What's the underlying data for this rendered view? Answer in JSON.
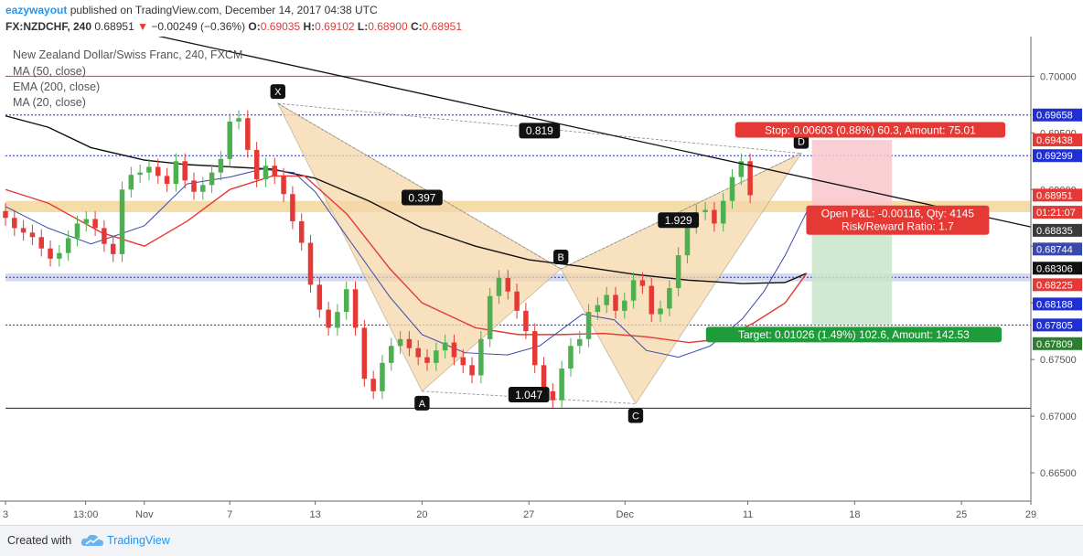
{
  "header": {
    "author": "eazywayout",
    "published_text": "published on TradingView.com, December 14, 2017 04:38 UTC",
    "symbol": "FX:NZDCHF, 240",
    "last": "0.68951",
    "arrow": "▼",
    "change": "−0.00249 (−0.36%)",
    "ohlc": [
      {
        "k": "O:",
        "v": "0.69035"
      },
      {
        "k": "H:",
        "v": "0.69102"
      },
      {
        "k": "L:",
        "v": "0.68900"
      },
      {
        "k": "C:",
        "v": "0.68951"
      }
    ]
  },
  "legend": [
    "New Zealand Dollar/Swiss Franc, 240, FXCM",
    "MA (50, close)",
    "EMA (200, close)",
    "MA (20, close)"
  ],
  "footer": {
    "created_with": "Created with",
    "brand": "TradingView"
  },
  "colors": {
    "up": "#4caf50",
    "down": "#e53935",
    "ma50": "#3949ab",
    "ema200": "#e53935",
    "ma20": "#111111",
    "pattern_fill": "#f5d7a9",
    "hline_blue": "#1f2fd1",
    "hline_red": "#e53935",
    "zone": "#f1cf86",
    "stop_fill": "#f9c7cb",
    "target_fill": "#c8e6c9"
  },
  "chart_data": {
    "type": "candlestick",
    "ylim": [
      0.6625,
      0.7035
    ],
    "xlim": [
      1,
      97
    ],
    "y_ticks": [
      "0.70000",
      "0.69500",
      "0.69000",
      "0.68500",
      "0.68000",
      "0.67500",
      "0.67000",
      "0.66500"
    ],
    "x_ticks": [
      {
        "label": "3",
        "x": 1
      },
      {
        "label": "13:00",
        "x": 8.5
      },
      {
        "label": "Nov",
        "x": 14
      },
      {
        "label": "7",
        "x": 22
      },
      {
        "label": "13",
        "x": 30
      },
      {
        "label": "20",
        "x": 40
      },
      {
        "label": "27",
        "x": 50
      },
      {
        "label": "Dec",
        "x": 59
      },
      {
        "label": "11",
        "x": 70.5
      },
      {
        "label": "18",
        "x": 80.5
      },
      {
        "label": "25",
        "x": 90.5
      },
      {
        "label": "29",
        "x": 97
      }
    ],
    "candles_close": [
      0.6875,
      0.6866,
      0.6862,
      0.6858,
      0.6848,
      0.6839,
      0.6844,
      0.6857,
      0.687,
      0.6874,
      0.6866,
      0.6852,
      0.6843,
      0.69,
      0.6913,
      0.6915,
      0.692,
      0.6912,
      0.6905,
      0.6925,
      0.6908,
      0.6898,
      0.6904,
      0.6915,
      0.6927,
      0.696,
      0.6963,
      0.6935,
      0.6909,
      0.6921,
      0.6912,
      0.6896,
      0.6872,
      0.6853,
      0.6816,
      0.6794,
      0.6778,
      0.6792,
      0.6812,
      0.6778,
      0.6733,
      0.6722,
      0.6747,
      0.6762,
      0.6768,
      0.676,
      0.6752,
      0.6747,
      0.6758,
      0.6765,
      0.6752,
      0.6745,
      0.6736,
      0.6768,
      0.6806,
      0.6822,
      0.681,
      0.6793,
      0.6775,
      0.6745,
      0.6722,
      0.6714,
      0.6742,
      0.6762,
      0.6768,
      0.6792,
      0.6798,
      0.6807,
      0.6793,
      0.6802,
      0.682,
      0.6815,
      0.679,
      0.6795,
      0.6813,
      0.6842,
      0.6868,
      0.688,
      0.6882,
      0.687,
      0.689,
      0.6911,
      0.6925,
      0.6895
    ],
    "candles_x_start": 1,
    "candles_x_step": 0.84,
    "ma20": [
      [
        1,
        0.6885
      ],
      [
        5,
        0.6866
      ],
      [
        9,
        0.6852
      ],
      [
        14,
        0.6868
      ],
      [
        18,
        0.6905
      ],
      [
        22,
        0.6911
      ],
      [
        25,
        0.6918
      ],
      [
        28,
        0.6915
      ],
      [
        30,
        0.6898
      ],
      [
        33,
        0.6858
      ],
      [
        37,
        0.6805
      ],
      [
        40,
        0.6772
      ],
      [
        44,
        0.6756
      ],
      [
        48,
        0.6754
      ],
      [
        51,
        0.6762
      ],
      [
        55,
        0.679
      ],
      [
        58,
        0.6785
      ],
      [
        61,
        0.6758
      ],
      [
        64,
        0.6752
      ],
      [
        67,
        0.6762
      ],
      [
        70,
        0.6786
      ],
      [
        72,
        0.681
      ],
      [
        74,
        0.6842
      ],
      [
        76,
        0.688
      ]
    ],
    "ma50": [
      [
        1,
        0.69
      ],
      [
        5,
        0.6888
      ],
      [
        10,
        0.6862
      ],
      [
        14,
        0.685
      ],
      [
        18,
        0.6872
      ],
      [
        22,
        0.69
      ],
      [
        26,
        0.6912
      ],
      [
        29,
        0.6912
      ],
      [
        33,
        0.6878
      ],
      [
        37,
        0.683
      ],
      [
        40,
        0.68
      ],
      [
        45,
        0.6778
      ],
      [
        49,
        0.6772
      ],
      [
        53,
        0.6772
      ],
      [
        57,
        0.6773
      ],
      [
        61,
        0.677
      ],
      [
        65,
        0.6765
      ],
      [
        68,
        0.6768
      ],
      [
        71,
        0.6782
      ],
      [
        74,
        0.68
      ],
      [
        76,
        0.6826
      ]
    ],
    "ema200": [
      [
        1,
        0.6965
      ],
      [
        5,
        0.6955
      ],
      [
        9,
        0.6937
      ],
      [
        14,
        0.6926
      ],
      [
        18,
        0.6922
      ],
      [
        22,
        0.692
      ],
      [
        26,
        0.6918
      ],
      [
        30,
        0.691
      ],
      [
        35,
        0.689
      ],
      [
        40,
        0.6866
      ],
      [
        45,
        0.685
      ],
      [
        50,
        0.6838
      ],
      [
        55,
        0.6832
      ],
      [
        60,
        0.6825
      ],
      [
        65,
        0.682
      ],
      [
        70,
        0.6817
      ],
      [
        74,
        0.6818
      ],
      [
        76,
        0.6826
      ]
    ],
    "pattern_points": [
      {
        "label": "X",
        "x": 26.5,
        "y": 0.6976
      },
      {
        "label": "A",
        "x": 40,
        "y": 0.6722
      },
      {
        "label": "B",
        "x": 53,
        "y": 0.683
      },
      {
        "label": "C",
        "x": 60,
        "y": 0.6711
      },
      {
        "label": "D",
        "x": 75.5,
        "y": 0.6932
      }
    ],
    "ratios": [
      {
        "label": "0.819",
        "x": 51,
        "y": 0.6952
      },
      {
        "label": "0.397",
        "x": 40,
        "y": 0.6893
      },
      {
        "label": "1.047",
        "x": 50,
        "y": 0.6719
      },
      {
        "label": "1.929",
        "x": 64,
        "y": 0.6873
      }
    ],
    "trendline": [
      [
        0,
        0.7067
      ],
      [
        97,
        0.6867
      ]
    ],
    "hlines": [
      {
        "y": 0.7,
        "color": "red",
        "style": "solid"
      },
      {
        "y": 0.69658,
        "color": "blue",
        "style": "dotted"
      },
      {
        "y": 0.69299,
        "color": "blue",
        "style": "dotted"
      },
      {
        "y": 0.68225,
        "color": "blue",
        "style": "dotted"
      },
      {
        "y": 0.67805,
        "color": "blue",
        "style": "dotted"
      },
      {
        "y": 0.6707,
        "color": "black",
        "style": "solid"
      }
    ],
    "zones": [
      {
        "y1": 0.689,
        "y2": 0.688,
        "color": "zone"
      },
      {
        "y1": 0.6826,
        "y2": 0.6819,
        "color": "blue-zone"
      }
    ],
    "position": {
      "x1": 76.5,
      "x2": 84,
      "entry": 0.68835,
      "stop": 0.69438,
      "target": 0.67809,
      "stop_label": "Stop: 0.00603 (0.88%) 60.3, Amount: 75.01",
      "target_label": "Target: 0.01026 (1.49%) 102.6, Amount: 142.53",
      "pnl_label": "Open P&L: -0.00116, Qty: 4145",
      "rr_label": "Risk/Reward Ratio: 1.7"
    },
    "price_labels": [
      {
        "text": "0.69658",
        "y": 0.69658,
        "bg": "#1f2fd1",
        "fg": "#ffffff"
      },
      {
        "text": "0.69438",
        "y": 0.69438,
        "bg": "#e53935",
        "fg": "#ffffff"
      },
      {
        "text": "0.69299",
        "y": 0.69299,
        "bg": "#1f2fd1",
        "fg": "#ffffff"
      },
      {
        "text": "0.68951",
        "y": 0.68951,
        "bg": "#e53935",
        "fg": "#ffffff"
      },
      {
        "text": "01:21:07",
        "y": 0.688,
        "bg": "#e53935",
        "fg": "#ffffff"
      },
      {
        "text": "0.68835",
        "y": 0.6864,
        "bg": "#3a3a3a",
        "fg": "#ffffff"
      },
      {
        "text": "0.68744",
        "y": 0.68475,
        "bg": "#3949ab",
        "fg": "#ffffff"
      },
      {
        "text": "0.68306",
        "y": 0.68306,
        "bg": "#111111",
        "fg": "#ffffff"
      },
      {
        "text": "0.68225",
        "y": 0.6816,
        "bg": "#e53935",
        "fg": "#ffffff"
      },
      {
        "text": "0.68188",
        "y": 0.6799,
        "bg": "#1f2fd1",
        "fg": "#ffffff"
      },
      {
        "text": "0.67805",
        "y": 0.67805,
        "bg": "#1f2fd1",
        "fg": "#ffffff"
      },
      {
        "text": "0.67809",
        "y": 0.6764,
        "bg": "#2e7d32",
        "fg": "#ffffff"
      }
    ]
  }
}
